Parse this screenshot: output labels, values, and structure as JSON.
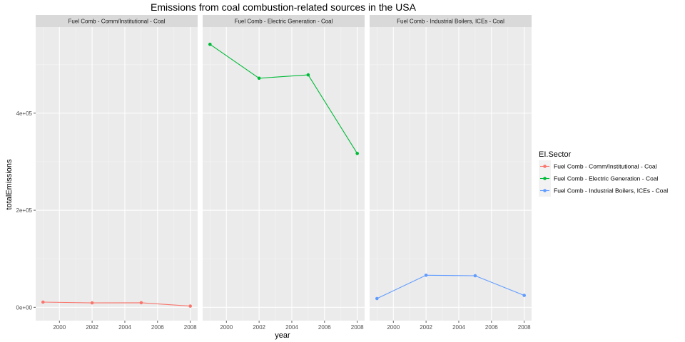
{
  "chart_data": {
    "type": "line",
    "title": "Emissions from coal combustion-related sources in the USA",
    "xlabel": "year",
    "ylabel": "totalEmissions",
    "x_ticks": [
      2000,
      2002,
      2004,
      2006,
      2008
    ],
    "x_tick_labels": [
      "2000",
      "2002",
      "2004",
      "2006",
      "2008"
    ],
    "y_ticks": [
      0,
      200000,
      400000
    ],
    "y_tick_labels": [
      "0e+00",
      "2e+05",
      "4e+05"
    ],
    "xlim": [
      1998.55,
      2008.45
    ],
    "ylim": [
      -27500,
      577500
    ],
    "grid": true,
    "legend_title": "EI.Sector",
    "legend_position": "right",
    "series": [
      {
        "name": "Fuel Comb - Comm/Institutional - Coal",
        "color": "#F8766D",
        "x": [
          1999,
          2002,
          2005,
          2008
        ],
        "y": [
          10700,
          9000,
          9300,
          2500
        ]
      },
      {
        "name": "Fuel Comb - Electric Generation - Coal",
        "color": "#00BA38",
        "x": [
          1999,
          2002,
          2005,
          2008
        ],
        "y": [
          542000,
          472000,
          479000,
          317000
        ]
      },
      {
        "name": "Fuel Comb - Industrial Boilers, ICEs - Coal",
        "color": "#619CFF",
        "x": [
          1999,
          2002,
          2005,
          2008
        ],
        "y": [
          18000,
          66000,
          65000,
          24500
        ]
      }
    ]
  }
}
